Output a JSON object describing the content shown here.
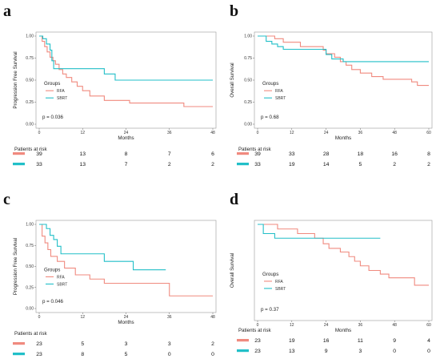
{
  "colors": {
    "RFA": "#F08A7F",
    "SBRT": "#22BFC8"
  },
  "chart_data": [
    {
      "type": "line",
      "panel": "a",
      "ylabel": "Progression Free Survival",
      "xlabel": "Months",
      "xticks": [
        "0",
        "12",
        "24",
        "36",
        "48"
      ],
      "yticks": [
        "0.00",
        "0.25",
        "0.50",
        "0.75",
        "1.00"
      ],
      "xlim": [
        0,
        48
      ],
      "ylim": [
        0,
        1
      ],
      "grid": false,
      "legend_title": "Groups",
      "legend_position": "middle-left",
      "p_value": "p = 0.036",
      "series": [
        {
          "name": "RFA",
          "x": [
            0,
            0.8,
            1.5,
            2.2,
            3,
            3.8,
            4.5,
            5.5,
            6.5,
            7.5,
            9,
            10.5,
            12,
            14,
            18,
            25,
            40,
            48
          ],
          "y": [
            1,
            0.94,
            0.88,
            0.82,
            0.76,
            0.72,
            0.68,
            0.62,
            0.57,
            0.53,
            0.48,
            0.43,
            0.38,
            0.32,
            0.27,
            0.24,
            0.2,
            0.2
          ]
        },
        {
          "name": "SBRT",
          "x": [
            0,
            1,
            2,
            3,
            3.5,
            4,
            18,
            21,
            48
          ],
          "y": [
            1,
            0.97,
            0.91,
            0.84,
            0.72,
            0.63,
            0.57,
            0.5,
            0.5
          ]
        }
      ],
      "risk_table": {
        "title": "Patients at risk",
        "rows": [
          {
            "name": "RFA",
            "values": [
              "39",
              "13",
              "8",
              "7",
              "6"
            ]
          },
          {
            "name": "SBRT",
            "values": [
              "33",
              "13",
              "7",
              "2",
              "2"
            ]
          }
        ]
      }
    },
    {
      "type": "line",
      "panel": "b",
      "ylabel": "Overall Survival",
      "xlabel": "Months",
      "xticks": [
        "0",
        "12",
        "24",
        "36",
        "48",
        "60"
      ],
      "yticks": [
        "0.00",
        "0.25",
        "0.50",
        "0.75",
        "1.00"
      ],
      "xlim": [
        0,
        60
      ],
      "ylim": [
        0,
        1
      ],
      "grid": false,
      "legend_title": "Groups",
      "legend_position": "middle-left",
      "p_value": "p = 0.68",
      "series": [
        {
          "name": "RFA",
          "x": [
            0,
            6,
            9,
            15,
            23,
            24,
            27,
            29,
            31,
            33,
            36,
            40,
            44,
            54,
            56,
            58,
            60
          ],
          "y": [
            1,
            0.97,
            0.93,
            0.88,
            0.84,
            0.8,
            0.76,
            0.71,
            0.67,
            0.62,
            0.58,
            0.54,
            0.51,
            0.48,
            0.44,
            0.44,
            0.44
          ]
        },
        {
          "name": "SBRT",
          "x": [
            0,
            3,
            5,
            7,
            9,
            24,
            26,
            30,
            60
          ],
          "y": [
            1,
            0.94,
            0.91,
            0.88,
            0.85,
            0.79,
            0.74,
            0.71,
            0.71
          ]
        }
      ],
      "risk_table": {
        "title": "Patients at risk",
        "rows": [
          {
            "name": "RFA",
            "values": [
              "39",
              "33",
              "28",
              "18",
              "16",
              "8"
            ]
          },
          {
            "name": "SBRT",
            "values": [
              "33",
              "19",
              "14",
              "5",
              "2",
              "2"
            ]
          }
        ]
      }
    },
    {
      "type": "line",
      "panel": "c",
      "ylabel": "Progression Free Survival",
      "xlabel": "Months",
      "xticks": [
        "0",
        "12",
        "24",
        "36",
        "48"
      ],
      "yticks": [
        "0.00",
        "0.25",
        "0.50",
        "0.75",
        "1.00"
      ],
      "xlim": [
        0,
        48
      ],
      "ylim": [
        0,
        1
      ],
      "grid": false,
      "legend_title": "Groups",
      "legend_position": "middle-left",
      "p_value": "p = 0.046",
      "series": [
        {
          "name": "RFA",
          "x": [
            0,
            0.8,
            1.6,
            2.4,
            3.2,
            5,
            7,
            10,
            14,
            18,
            36,
            48
          ],
          "y": [
            1,
            0.86,
            0.78,
            0.7,
            0.62,
            0.56,
            0.48,
            0.4,
            0.35,
            0.3,
            0.15,
            0.15
          ]
        },
        {
          "name": "SBRT",
          "x": [
            0,
            2,
            3,
            4,
            5,
            6,
            18,
            26,
            35
          ],
          "y": [
            1,
            0.95,
            0.87,
            0.82,
            0.74,
            0.65,
            0.56,
            0.46,
            0.46
          ]
        }
      ],
      "risk_table": {
        "title": "Patients at risk",
        "rows": [
          {
            "name": "RFA",
            "values": [
              "23",
              "5",
              "3",
              "3",
              "2"
            ]
          },
          {
            "name": "SBRT",
            "values": [
              "23",
              "8",
              "5",
              "0",
              "0"
            ]
          }
        ]
      }
    },
    {
      "type": "line",
      "panel": "d",
      "ylabel": "Overall Survival",
      "xlabel": "Months",
      "xticks": [
        "0",
        "12",
        "24",
        "36",
        "48",
        "60"
      ],
      "yticks": [],
      "xlim": [
        0,
        60
      ],
      "ylim": [
        0,
        1
      ],
      "grid": false,
      "legend_title": "Groups",
      "legend_position": "middle-left",
      "p_value": "p = 0.37",
      "series": [
        {
          "name": "RFA",
          "x": [
            0,
            7,
            14,
            20,
            23,
            25,
            29,
            32,
            34,
            36,
            39,
            43,
            46,
            55,
            60
          ],
          "y": [
            1,
            0.95,
            0.9,
            0.85,
            0.79,
            0.74,
            0.7,
            0.65,
            0.6,
            0.55,
            0.5,
            0.46,
            0.42,
            0.34,
            0.34
          ]
        },
        {
          "name": "SBRT",
          "x": [
            0,
            2,
            6,
            12,
            43
          ],
          "y": [
            1,
            0.9,
            0.85,
            0.85,
            0.85
          ]
        }
      ],
      "risk_table": {
        "title": "Patients at risk",
        "rows": [
          {
            "name": "RFA",
            "values": [
              "23",
              "19",
              "16",
              "11",
              "9",
              "4"
            ]
          },
          {
            "name": "SBRT",
            "values": [
              "23",
              "13",
              "9",
              "3",
              "0",
              "0"
            ]
          }
        ]
      }
    }
  ]
}
